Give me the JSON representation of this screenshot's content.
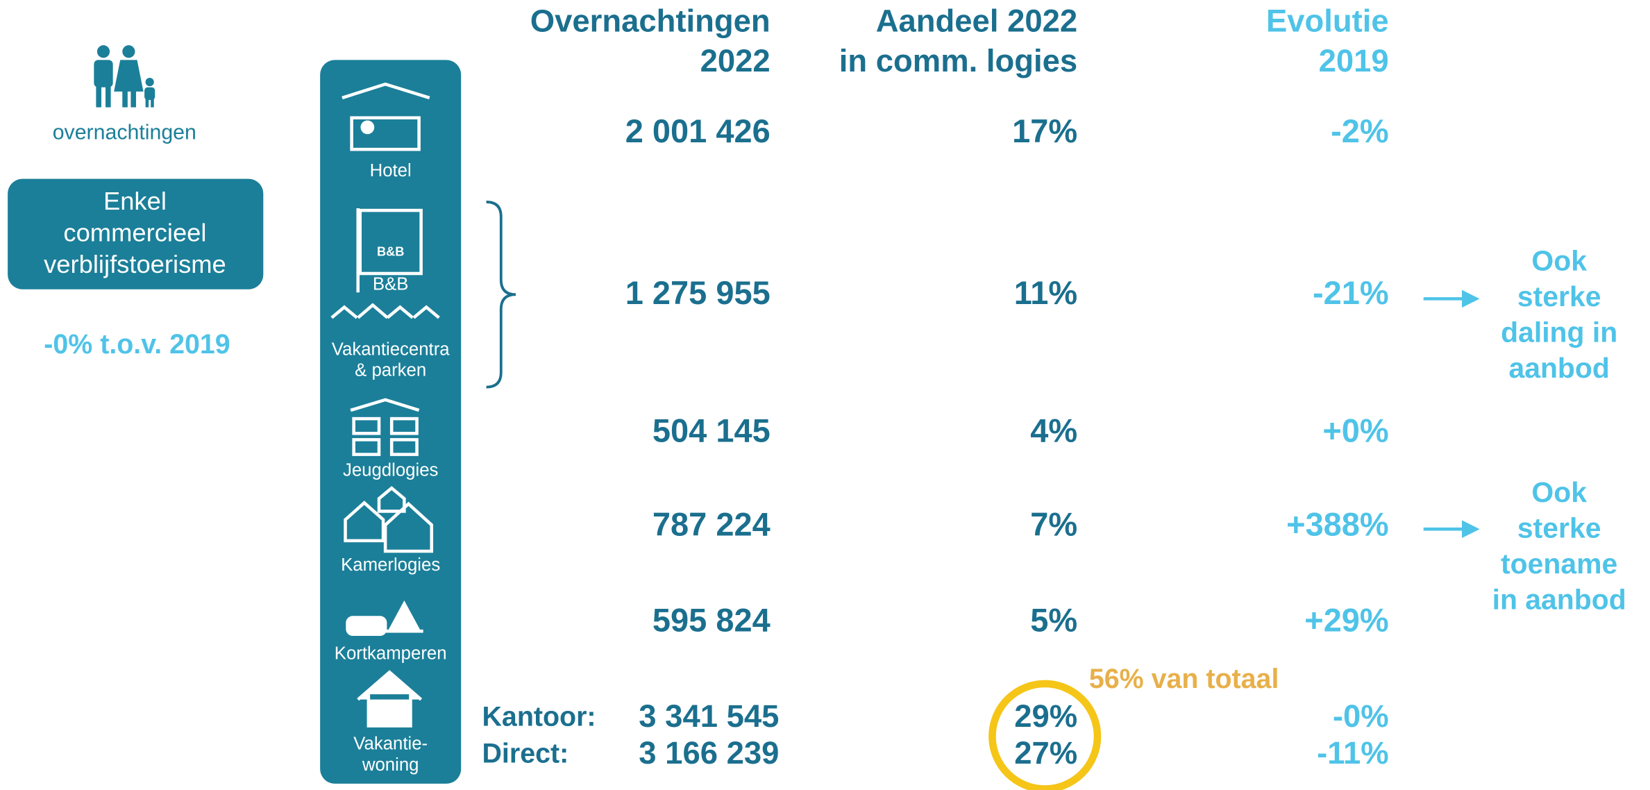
{
  "left": {
    "icon_label": "overnachtingen",
    "box": [
      "Enkel",
      "commercieel",
      "verblijfstoerisme"
    ],
    "change": "-0% t.o.v. 2019"
  },
  "headers": [
    [
      "Overnachtingen",
      "2022"
    ],
    [
      "Aandeel 2022",
      "in comm. logies"
    ],
    [
      "Evolutie",
      "2019"
    ]
  ],
  "sidebar": [
    [
      "Hotel"
    ],
    [
      "B&B"
    ],
    [
      "Vakantiecentra",
      "& parken"
    ],
    [
      "Jeugdlogies"
    ],
    [
      "Kamerlogies"
    ],
    [
      "Kortkamperen"
    ],
    [
      "Vakantie-",
      "woning"
    ]
  ],
  "icon_texts": {
    "hotel": "Hotel",
    "bnb": "B&B",
    "jeugd": "Jeugd"
  },
  "rows": [
    {
      "nights": "2 001 426",
      "share": "17%",
      "evolution": "-2%"
    },
    {
      "nights": "1 275 955",
      "share": "11%",
      "evolution": "-21%"
    },
    {
      "nights": "504 145",
      "share": "4%",
      "evolution": "+0%"
    },
    {
      "nights": "787 224",
      "share": "7%",
      "evolution": "+388%"
    },
    {
      "nights": "595 824",
      "share": "5%",
      "evolution": "+29%"
    }
  ],
  "vakantiewoning": [
    {
      "label": "Kantoor:",
      "nights": "3 341 545",
      "share": "29%",
      "evolution": "-0%"
    },
    {
      "label": "Direct:",
      "nights": "3 166 239",
      "share": "27%",
      "evolution": "-11%"
    }
  ],
  "total_note": "56% van totaal",
  "notes": [
    [
      "Ook",
      "sterke",
      "daling in",
      "aanbod"
    ],
    [
      "Ook",
      "sterke",
      "toename",
      "in aanbod"
    ]
  ]
}
